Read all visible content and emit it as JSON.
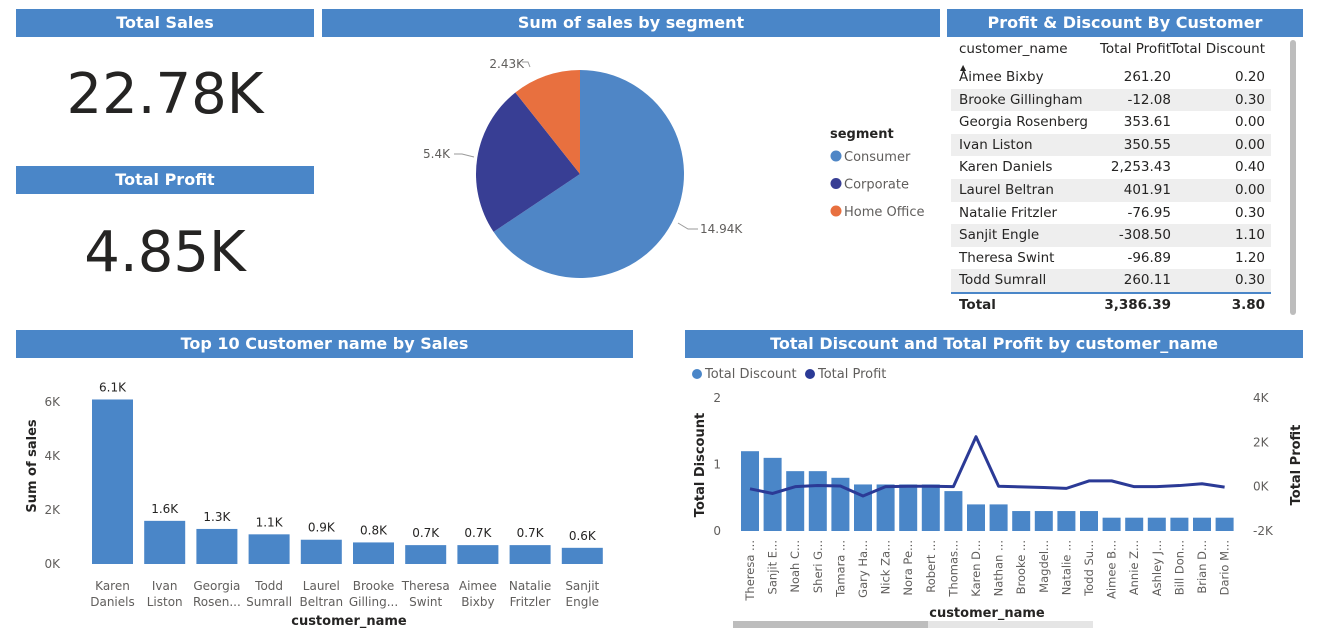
{
  "cards": {
    "total_sales": {
      "title": "Total Sales",
      "value": "22.78K"
    },
    "total_profit": {
      "title": "Total Profit",
      "value": "4.85K"
    }
  },
  "pie": {
    "title": "Sum of sales by segment",
    "legend_title": "segment",
    "labels": [
      "14.94K",
      "5.4K",
      "2.43K"
    ]
  },
  "table": {
    "title": "Profit & Discount By Customer",
    "columns": [
      "customer_name",
      "Total Profit",
      "Total Discount"
    ],
    "rows": [
      [
        "Aimee Bixby",
        "261.20",
        "0.20"
      ],
      [
        "Brooke Gillingham",
        "-12.08",
        "0.30"
      ],
      [
        "Georgia Rosenberg",
        "353.61",
        "0.00"
      ],
      [
        "Ivan Liston",
        "350.55",
        "0.00"
      ],
      [
        "Karen Daniels",
        "2,253.43",
        "0.40"
      ],
      [
        "Laurel Beltran",
        "401.91",
        "0.00"
      ],
      [
        "Natalie Fritzler",
        "-76.95",
        "0.30"
      ],
      [
        "Sanjit Engle",
        "-308.50",
        "1.10"
      ],
      [
        "Theresa Swint",
        "-96.89",
        "1.20"
      ],
      [
        "Todd Sumrall",
        "260.11",
        "0.30"
      ]
    ],
    "total": [
      "Total",
      "3,386.39",
      "3.80"
    ]
  },
  "bar": {
    "title": "Top 10 Customer name by Sales",
    "labels": [
      "6.1K",
      "1.6K",
      "1.3K",
      "1.1K",
      "0.9K",
      "0.8K",
      "0.7K",
      "0.7K",
      "0.7K",
      "0.6K"
    ],
    "cat_line1": [
      "Karen",
      "Ivan",
      "Georgia",
      "Todd",
      "Laurel",
      "Brooke",
      "Theresa",
      "Aimee",
      "Natalie",
      "Sanjit"
    ],
    "cat_line2": [
      "Daniels",
      "Liston",
      "Rosen...",
      "Sumrall",
      "Beltran",
      "Gilling...",
      "Swint",
      "Bixby",
      "Fritzler",
      "Engle"
    ]
  },
  "combo": {
    "title": "Total Discount and Total Profit by customer_name",
    "cats": [
      "Theresa ...",
      "Sanjit E...",
      "Noah C...",
      "Sheri G...",
      "Tamara ...",
      "Gary Ha...",
      "Nick Za...",
      "Nora Pe...",
      "Robert ...",
      "Thomas...",
      "Karen D...",
      "Nathan ...",
      "Brooke ...",
      "Magdel...",
      "Natalie ...",
      "Todd Su...",
      "Aimee B...",
      "Annie Z...",
      "Ashley J...",
      "Bill Don...",
      "Brian D...",
      "Dario M..."
    ]
  },
  "chart_data": [
    {
      "type": "pie",
      "title": "Sum of sales by segment",
      "legend_title": "segment",
      "categories": [
        "Consumer",
        "Corporate",
        "Home Office"
      ],
      "values": [
        14940,
        5400,
        2430
      ],
      "colors": [
        "#4f86c6",
        "#383e94",
        "#e8703f"
      ]
    },
    {
      "type": "bar",
      "title": "Top 10 Customer name by Sales",
      "xlabel": "customer_name",
      "ylabel": "Sum of sales",
      "categories": [
        "Karen Daniels",
        "Ivan Liston",
        "Georgia Rosen...",
        "Todd Sumrall",
        "Laurel Beltran",
        "Brooke Gilling...",
        "Theresa Swint",
        "Aimee Bixby",
        "Natalie Fritzler",
        "Sanjit Engle"
      ],
      "values": [
        6100,
        1600,
        1300,
        1100,
        900,
        800,
        700,
        700,
        700,
        600
      ],
      "yticks": [
        "0K",
        "2K",
        "4K",
        "6K"
      ],
      "ylim": [
        0,
        6600
      ],
      "color": "#4a86c8"
    },
    {
      "type": "bar",
      "title": "Total Discount and Total Profit by customer_name",
      "xlabel": "customer_name",
      "ylabel": "Total Discount",
      "ylabel_right": "Total Profit",
      "categories": [
        "Theresa ...",
        "Sanjit E...",
        "Noah C...",
        "Sheri G...",
        "Tamara ...",
        "Gary Ha...",
        "Nick Za...",
        "Nora Pe...",
        "Robert ...",
        "Thomas...",
        "Karen D...",
        "Nathan ...",
        "Brooke ...",
        "Magdel...",
        "Natalie ...",
        "Todd Su...",
        "Aimee B...",
        "Annie Z...",
        "Ashley J...",
        "Bill Don...",
        "Brian D...",
        "Dario M..."
      ],
      "series": [
        {
          "name": "Total Discount",
          "type": "bar",
          "axis": "left",
          "color": "#4a86c8",
          "values": [
            1.2,
            1.1,
            0.9,
            0.9,
            0.8,
            0.7,
            0.7,
            0.7,
            0.7,
            0.6,
            0.4,
            0.4,
            0.3,
            0.3,
            0.3,
            0.3,
            0.2,
            0.2,
            0.2,
            0.2,
            0.2,
            0.2
          ]
        },
        {
          "name": "Total Profit",
          "type": "line",
          "axis": "right",
          "color": "#2b3a96",
          "values": [
            -97,
            -308,
            0,
            50,
            30,
            -420,
            0,
            20,
            20,
            0,
            2253,
            20,
            -12,
            -40,
            -77,
            260,
            261,
            0,
            0,
            50,
            130,
            -20
          ]
        }
      ],
      "yticks_left": [
        "0",
        "1",
        "2"
      ],
      "ylim_left": [
        0,
        2
      ],
      "yticks_right": [
        "-2K",
        "0K",
        "2K",
        "4K"
      ],
      "ylim_right": [
        -2000,
        4000
      ]
    }
  ]
}
